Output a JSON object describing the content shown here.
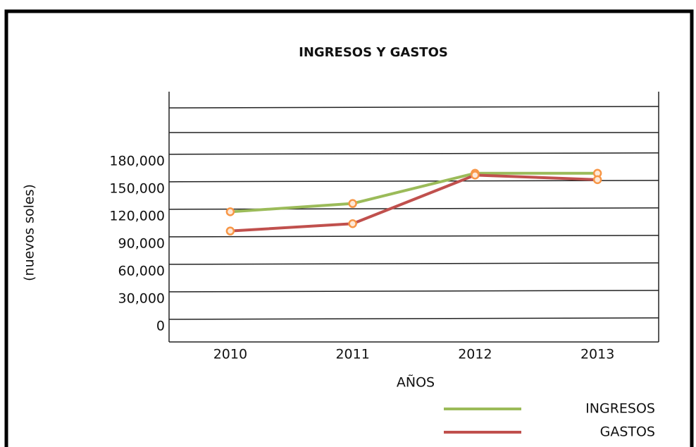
{
  "chart_data": {
    "type": "line",
    "title": "INGRESOS Y GASTOS",
    "x_label": "AÑOS",
    "y_label": "(nuevos soles)",
    "categories": [
      "2010",
      "2011",
      "2012",
      "2013"
    ],
    "series": [
      {
        "name": "INGRESOS",
        "color": "#9bbb59",
        "values": [
          125000,
          134000,
          167000,
          167000
        ]
      },
      {
        "name": "GASTOS",
        "color": "#c0504d",
        "values": [
          104000,
          112000,
          165000,
          160000
        ]
      }
    ],
    "marker_color": "#f79646",
    "ylim": [
      -17000,
      256000
    ],
    "yticks": [
      0,
      {
        "value": 30000,
        "label": "30,000"
      },
      {
        "value": 60000,
        "label": "60,000"
      },
      {
        "value": 90000,
        "label": "90,000"
      },
      {
        "value": 120000,
        "label": "120,000"
      },
      {
        "value": 150000,
        "label": "150,000"
      },
      {
        "value": 180000,
        "label": "180,000"
      }
    ],
    "grid": true,
    "legend": "bottom-right"
  }
}
